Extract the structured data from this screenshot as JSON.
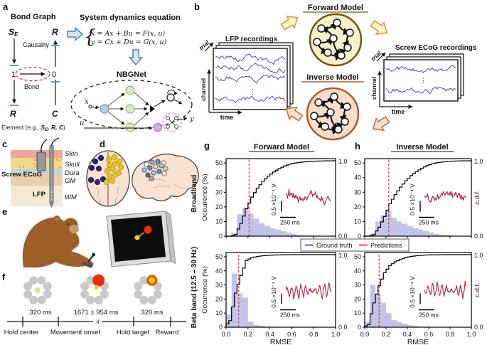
{
  "figure": {
    "panel_letters": [
      "a",
      "b",
      "c",
      "d",
      "e",
      "f",
      "g",
      "h"
    ],
    "panel_a": {
      "bond_graph_title": "Bond Graph",
      "se_main": "S",
      "se_sub": "E",
      "r_top": "R",
      "one": "1",
      "zero": "0",
      "r_bottom": "R",
      "c": "C",
      "causality": "Causality",
      "bond": "Bond",
      "element_pre": "Element (e.g., ",
      "element_s": "S",
      "element_s_sub": "E",
      "element_rest": ", R, C",
      "element_close": ")",
      "eq_title": "System dynamics equation",
      "eq_brace": "{",
      "eq_line1": "ẋ = Ax + Bu = F(x, u)",
      "eq_line2": "y = Cx + Du = G(x, u)",
      "nbgnet_title": "NBGNet",
      "x_in": "x",
      "u_in": "u",
      "y_out": "y"
    },
    "panel_b": {
      "lfp_title": "LFP recordings",
      "screw_title": "Screw ECoG recordings",
      "forward_title": "Forward Model",
      "inverse_title": "Inverse Model",
      "trial": "trial",
      "channel": "channel",
      "time": "time",
      "dots": "⋮"
    },
    "panel_c": {
      "layers": [
        "Skin",
        "Skull",
        "Dura",
        "GM",
        "WM"
      ],
      "screw_label": "Screw ECoG",
      "lfp_label": "LFP"
    },
    "panel_f": {
      "durations": [
        "320 ms",
        "1671 ± 954 ms",
        "320 ms"
      ],
      "events": [
        "Hold center",
        "Movement onset",
        "Hold target",
        "Reward"
      ],
      "break_symbol": "≈"
    },
    "charts": {
      "g_title": "Forward Model",
      "h_title": "Inverse Model",
      "row_labels": [
        "Broadband",
        "Beta band (12.5 – 30 Hz)"
      ],
      "occurrence_label": "Occurrence (%)",
      "cdf_label": "c.d.f.",
      "rmse_label": "RMSE",
      "right_top": "1.0",
      "right_bottom": "0.0",
      "legend": [
        {
          "label": "Ground truth",
          "color": "#2a2ad0"
        },
        {
          "label": "Predictions",
          "color": "#e02020"
        }
      ],
      "inset_vscale": "0.5 ×10⁻⁴ V",
      "inset_tscale": "250 ms"
    }
  },
  "chart_data": [
    {
      "id": "forward-broadband",
      "type": "histogram+cdf",
      "model": "Forward Model",
      "band": "Broadband",
      "xlabel": "RMSE",
      "ylabel_left": "Occurrence (%)",
      "ylabel_right": "c.d.f.",
      "xlim": [
        0,
        1
      ],
      "ylim_left": [
        0,
        53
      ],
      "ylim_right": [
        0,
        1
      ],
      "xticks": [
        0,
        0.2,
        0.4,
        0.6,
        0.8,
        1.0
      ],
      "yticks_left": [
        0,
        10,
        20,
        30,
        40,
        50
      ],
      "bin_start": 0,
      "bin_width": 0.05,
      "occurrence_pct": [
        0,
        2,
        15,
        19.5,
        15.5,
        12,
        9,
        7,
        5.5,
        4.5,
        3.5,
        2.5,
        1.5,
        1,
        0.7,
        0.5,
        0.3,
        0.2,
        0.1,
        0.1
      ],
      "median_rmse": 0.21,
      "inset": {
        "signal": "broadband",
        "burst_start": true,
        "seed": 11
      }
    },
    {
      "id": "forward-beta",
      "type": "histogram+cdf",
      "model": "Forward Model",
      "band": "Beta band (12.5 – 30 Hz)",
      "xlabel": "RMSE",
      "ylabel_left": "Occurrence (%)",
      "ylabel_right": "c.d.f.",
      "xlim": [
        0,
        1
      ],
      "ylim_left": [
        0,
        53
      ],
      "ylim_right": [
        0,
        1
      ],
      "xticks": [
        0,
        0.2,
        0.4,
        0.6,
        0.8,
        1.0
      ],
      "yticks_left": [
        0,
        10,
        20,
        30,
        40,
        50
      ],
      "bin_start": 0,
      "bin_width": 0.05,
      "occurrence_pct": [
        9,
        38,
        24,
        21,
        4,
        1.5,
        1,
        0.6,
        0.4,
        0.2,
        0.15,
        0.1,
        0.05,
        0,
        0,
        0,
        0,
        0,
        0,
        0
      ],
      "median_rmse": 0.115,
      "inset": {
        "signal": "beta",
        "burst_start": true,
        "seed": 22
      }
    },
    {
      "id": "inverse-broadband",
      "type": "histogram+cdf",
      "model": "Inverse Model",
      "band": "Broadband",
      "xlabel": "RMSE",
      "ylabel_left": "Occurrence (%)",
      "ylabel_right": "c.d.f.",
      "xlim": [
        0,
        1
      ],
      "ylim_left": [
        0,
        53
      ],
      "ylim_right": [
        0,
        1
      ],
      "xticks": [
        0,
        0.2,
        0.4,
        0.6,
        0.8,
        1.0
      ],
      "yticks_left": [
        0,
        10,
        20,
        30,
        40,
        50
      ],
      "bin_start": 0,
      "bin_width": 0.05,
      "occurrence_pct": [
        0,
        2,
        10,
        14.5,
        17,
        12.5,
        10,
        8.5,
        7,
        5.5,
        4.5,
        3.5,
        2.5,
        1.5,
        1,
        0.7,
        0.4,
        0.2,
        0.1,
        0.1
      ],
      "median_rmse": 0.225,
      "inset": {
        "signal": "broadband",
        "burst_start": false,
        "seed": 33
      }
    },
    {
      "id": "inverse-beta",
      "type": "histogram+cdf",
      "model": "Inverse Model",
      "band": "Beta band (12.5 – 30 Hz)",
      "xlabel": "RMSE",
      "ylabel_left": "Occurrence (%)",
      "ylabel_right": "c.d.f.",
      "xlim": [
        0,
        1
      ],
      "ylim_left": [
        0,
        53
      ],
      "ylim_right": [
        0,
        1
      ],
      "xticks": [
        0,
        0.2,
        0.4,
        0.6,
        0.8,
        1.0
      ],
      "yticks_left": [
        0,
        10,
        20,
        30,
        40,
        50
      ],
      "bin_start": 0,
      "bin_width": 0.05,
      "occurrence_pct": [
        3.5,
        30,
        24,
        17.5,
        10,
        5,
        3.5,
        2.5,
        1.5,
        1,
        0.6,
        0.4,
        0.2,
        0.1,
        0.1,
        0.05,
        0,
        0,
        0,
        0
      ],
      "median_rmse": 0.135,
      "inset": {
        "signal": "beta",
        "burst_start": false,
        "seed": 44
      }
    }
  ],
  "colors": {
    "histogram_fill": "#b9b9e6",
    "cdf_line": "#000000",
    "median_line": "#e03030",
    "ytick_color": "#5151c6",
    "trace_blue": "#2a2ad0",
    "trace_red": "#e02020",
    "recording_trace": "#3535bb",
    "forward_accent": "#7f6000",
    "inverse_accent": "#9c3d10",
    "forward_fill": "#f7f0cd",
    "inverse_fill": "#f7ddca",
    "causality_blue": "#5b9bd5",
    "bond_red": "#e03030"
  }
}
